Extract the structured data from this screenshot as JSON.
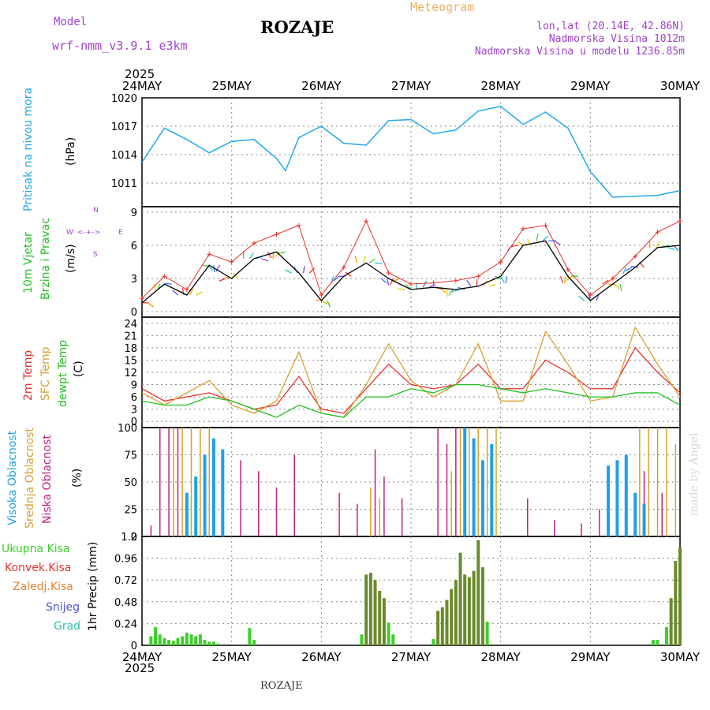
{
  "header": {
    "model_label": "Model",
    "model_name": "wrf-nmm_v3.9.1 e3km",
    "station": "ROZAJE",
    "chart_kind": "Meteogram",
    "coords": "lon,lat (20.14E, 42.86N)",
    "elevation": "Nadmorska Visina 1012m",
    "model_elevation": "Nadmorska Visina u modelu 1236.85m",
    "year": "2025",
    "footer_station": "ROZAJE",
    "watermark": "made by Angel"
  },
  "colors": {
    "pressure": "#22a8e8",
    "wind_speed": "#000000",
    "wind_gust": "#e8322c",
    "temp2m": "#e8322c",
    "sfc_temp": "#d8a030",
    "dewpt": "#22c022",
    "cloud_high": "#1ea0e8",
    "cloud_mid": "#d8a030",
    "cloud_low": "#c02080",
    "precip_total": "#3ccf2a",
    "precip_conv": "#e8322c",
    "precip_frozen": "#e88030",
    "snow": "#5050e0",
    "hail": "#30c0b0",
    "purple": "#a040d0"
  },
  "chart_data": [
    {
      "type": "line",
      "name": "pressure",
      "ylabel_left": "Pritisak na nivou mora",
      "ylabel_unit": "(hPa)",
      "ylim": [
        1008.5,
        1020
      ],
      "yticks": [
        1011,
        1014,
        1017,
        1020
      ],
      "x_days": [
        0,
        0.25,
        0.5,
        0.75,
        1.0,
        1.25,
        1.5,
        1.6,
        1.75,
        2.0,
        2.25,
        2.5,
        2.75,
        3.0,
        3.25,
        3.5,
        3.75,
        4.0,
        4.25,
        4.5,
        4.75,
        5.0,
        5.25,
        5.5,
        5.75,
        6.0
      ],
      "values": [
        1013.2,
        1016.8,
        1015.6,
        1014.2,
        1015.4,
        1015.6,
        1013.6,
        1012.3,
        1015.8,
        1017.0,
        1015.2,
        1015.0,
        1017.6,
        1017.7,
        1016.2,
        1016.6,
        1018.6,
        1019.1,
        1017.2,
        1018.5,
        1016.8,
        1012.2,
        1009.5,
        1009.6,
        1009.7,
        1010.2
      ]
    },
    {
      "type": "line",
      "name": "wind",
      "ylabel_left": "10m Vjetar",
      "ylabel_left2": "Brzina i Pravac",
      "ylabel_unit": "(m/s)",
      "ylim": [
        -0.5,
        9.5
      ],
      "yticks": [
        0,
        3,
        6,
        9
      ],
      "compass": {
        "n": "N",
        "s": "S",
        "e": "E",
        "w": "W"
      },
      "series": [
        {
          "name": "speed",
          "x_days": [
            0,
            0.25,
            0.5,
            0.75,
            1.0,
            1.25,
            1.5,
            1.75,
            2.0,
            2.25,
            2.5,
            2.75,
            3.0,
            3.25,
            3.5,
            3.75,
            4.0,
            4.25,
            4.5,
            4.75,
            5.0,
            5.25,
            5.5,
            5.75,
            6.0
          ],
          "values": [
            0.8,
            2.5,
            1.5,
            4.2,
            3.0,
            4.8,
            5.4,
            3.5,
            1.0,
            3.2,
            4.4,
            3.0,
            2.0,
            2.2,
            2.0,
            2.3,
            3.2,
            6.0,
            6.4,
            3.2,
            1.0,
            2.5,
            4.0,
            5.8,
            6.0
          ]
        },
        {
          "name": "gust",
          "x_days": [
            0,
            0.25,
            0.5,
            0.75,
            1.0,
            1.25,
            1.5,
            1.75,
            2.0,
            2.25,
            2.5,
            2.75,
            3.0,
            3.25,
            3.5,
            3.75,
            4.0,
            4.25,
            4.5,
            4.75,
            5.0,
            5.25,
            5.5,
            5.75,
            6.0
          ],
          "values": [
            1.2,
            3.2,
            2.0,
            5.2,
            4.5,
            6.2,
            7.0,
            7.8,
            1.5,
            4.0,
            8.2,
            3.5,
            2.5,
            2.6,
            2.8,
            3.2,
            4.5,
            7.5,
            7.8,
            3.8,
            1.5,
            3.0,
            5.0,
            7.2,
            8.2
          ]
        }
      ]
    },
    {
      "type": "line",
      "name": "temperature",
      "ylabel_left": "2m Temp",
      "ylabel_left2": "SFC Temp",
      "ylabel_left3": "dewpt Temp",
      "ylabel_unit": "(C)",
      "ylim": [
        -1.5,
        25.5
      ],
      "yticks": [
        0,
        3,
        6,
        9,
        12,
        15,
        18,
        21,
        24
      ],
      "x_days": [
        0,
        0.25,
        0.5,
        0.75,
        1.0,
        1.25,
        1.5,
        1.75,
        2.0,
        2.25,
        2.5,
        2.75,
        3.0,
        3.25,
        3.5,
        3.75,
        4.0,
        4.25,
        4.5,
        4.75,
        5.0,
        5.25,
        5.5,
        5.75,
        6.0
      ],
      "series": [
        {
          "name": "t2m",
          "values": [
            8,
            5,
            6,
            7,
            5,
            3,
            4,
            11,
            3,
            2,
            8,
            14,
            9,
            8,
            9,
            14,
            8,
            8,
            15,
            12,
            8,
            8,
            18,
            12,
            7
          ]
        },
        {
          "name": "tsfc",
          "values": [
            7,
            4,
            7,
            10,
            4,
            2,
            5,
            17,
            2,
            1,
            9,
            19,
            10,
            6,
            9,
            19,
            5,
            5,
            22,
            14,
            5,
            6,
            23,
            14,
            6
          ]
        },
        {
          "name": "dewpt",
          "values": [
            5,
            4,
            4,
            6,
            5,
            3,
            1,
            4,
            2,
            1,
            6,
            6,
            8,
            7,
            9,
            9,
            8,
            7,
            8,
            7,
            6,
            6,
            7,
            7,
            4
          ]
        }
      ]
    },
    {
      "type": "bar",
      "name": "clouds",
      "ylabel_left": "Visoka Oblacnost",
      "ylabel_left2": "Srednja Oblacnost",
      "ylabel_left3": "Niska Oblacnost",
      "ylabel_unit": "(%)",
      "ylim": [
        0,
        100
      ],
      "yticks": [
        0,
        25,
        50,
        75,
        100
      ],
      "series": [
        {
          "name": "low",
          "x_days": [
            0.1,
            0.2,
            0.3,
            0.4,
            0.9,
            1.1,
            1.3,
            1.5,
            1.7,
            2.2,
            2.4,
            2.6,
            2.7,
            2.9,
            3.3,
            3.4,
            3.5,
            3.6,
            3.7,
            4.3,
            4.6,
            4.9,
            5.1,
            5.6,
            5.8
          ],
          "values": [
            10,
            100,
            100,
            100,
            80,
            70,
            60,
            45,
            75,
            40,
            30,
            80,
            55,
            35,
            100,
            85,
            100,
            50,
            30,
            35,
            15,
            12,
            25,
            60,
            40
          ]
        },
        {
          "name": "mid",
          "x_days": [
            0.35,
            0.45,
            0.55,
            0.65,
            0.75,
            2.55,
            2.65,
            3.45,
            3.55,
            3.65,
            3.75,
            3.85,
            3.95,
            5.55,
            5.65,
            5.75,
            5.85,
            5.95
          ],
          "values": [
            100,
            100,
            100,
            100,
            100,
            45,
            35,
            60,
            100,
            100,
            100,
            100,
            100,
            100,
            100,
            100,
            100,
            85
          ]
        },
        {
          "name": "high",
          "x_days": [
            0.5,
            0.6,
            0.7,
            0.8,
            0.9,
            3.6,
            3.7,
            3.8,
            3.9,
            5.2,
            5.3,
            5.4,
            5.5,
            5.6
          ],
          "values": [
            40,
            55,
            75,
            90,
            80,
            100,
            90,
            70,
            85,
            65,
            70,
            75,
            40,
            30
          ]
        }
      ]
    },
    {
      "type": "bar",
      "name": "precip",
      "ylabel_left": "1hr Precip (mm)",
      "ylim": [
        0,
        1.2
      ],
      "yticks": [
        0,
        0.24,
        0.48,
        0.72,
        0.96,
        1.2
      ],
      "legend": [
        "Ukupna Kisa",
        "Konvek.Kisa",
        "Zaledj.Kisa",
        "Snijeg",
        "Grad"
      ],
      "x_days": [
        0.1,
        0.15,
        0.2,
        0.25,
        0.3,
        0.35,
        0.4,
        0.45,
        0.5,
        0.55,
        0.6,
        0.65,
        0.7,
        0.75,
        0.8,
        0.85,
        1.2,
        1.25,
        2.45,
        2.5,
        2.55,
        2.6,
        2.65,
        2.7,
        2.75,
        2.8,
        3.25,
        3.3,
        3.35,
        3.4,
        3.45,
        3.5,
        3.55,
        3.6,
        3.65,
        3.7,
        3.75,
        3.8,
        3.85,
        5.7,
        5.75,
        5.85,
        5.9,
        5.95,
        6.0
      ],
      "values": [
        0.1,
        0.2,
        0.12,
        0.08,
        0.06,
        0.05,
        0.08,
        0.1,
        0.14,
        0.12,
        0.1,
        0.12,
        0.06,
        0.04,
        0.04,
        0.02,
        0.19,
        0.06,
        0.12,
        0.78,
        0.8,
        0.72,
        0.6,
        0.52,
        0.25,
        0.12,
        0.07,
        0.38,
        0.42,
        0.5,
        0.62,
        0.72,
        1.02,
        0.78,
        0.75,
        0.82,
        1.16,
        0.86,
        0.26,
        0.06,
        0.06,
        0.2,
        0.52,
        0.93,
        1.08
      ]
    }
  ],
  "x_axis": {
    "ticks": [
      "24MAY",
      "25MAY",
      "26MAY",
      "27MAY",
      "28MAY",
      "29MAY",
      "30MAY"
    ]
  }
}
